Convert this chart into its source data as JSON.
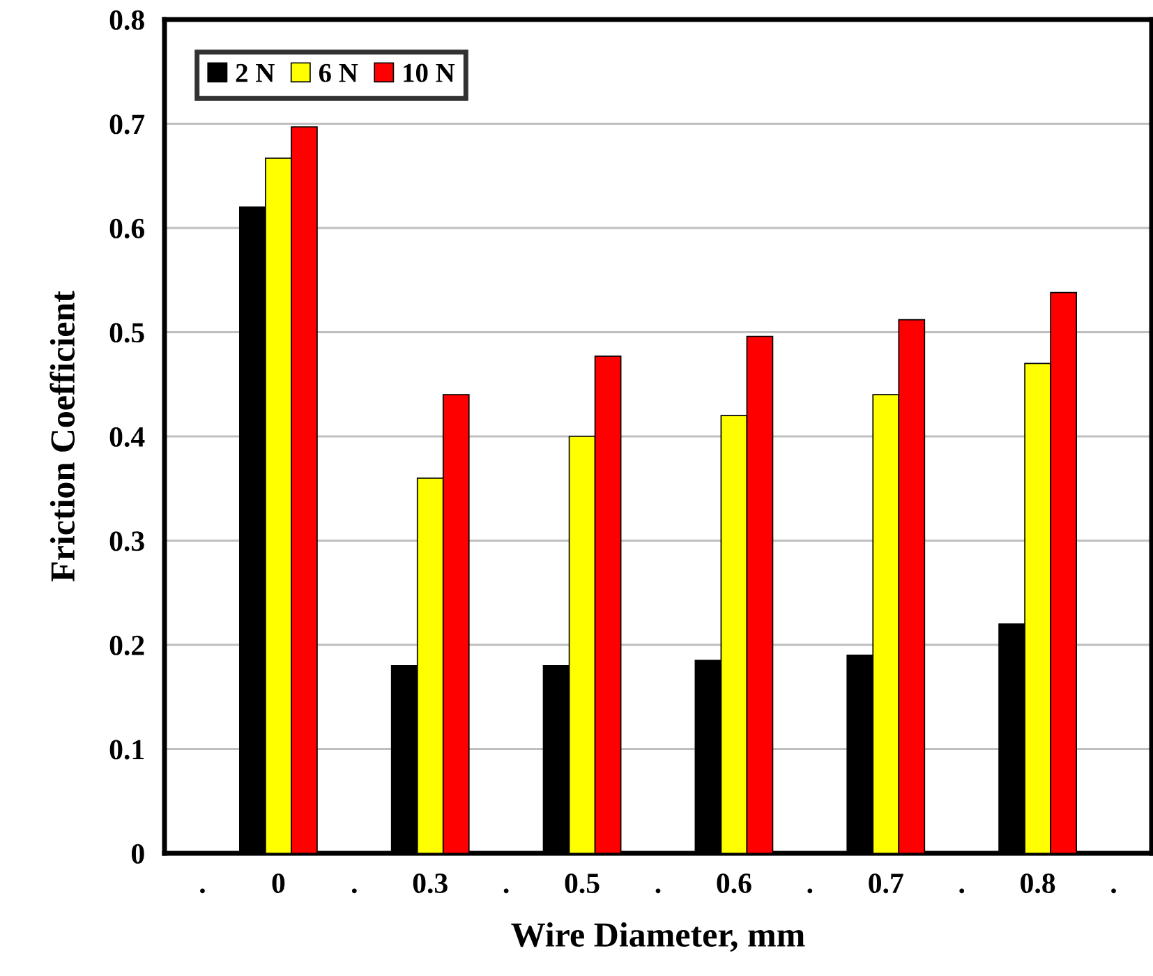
{
  "chart_data": {
    "type": "bar",
    "xlabel": "Wire Diameter, mm",
    "ylabel": "Friction Coefficient",
    "categories": [
      ".",
      "0",
      ".",
      "0.3",
      ".",
      "0.5",
      ".",
      "0.6",
      ".",
      "0.7",
      ".",
      "0.8",
      "."
    ],
    "series": [
      {
        "name": "2 N",
        "color": "#000000",
        "values": [
          null,
          0.62,
          null,
          0.18,
          null,
          0.18,
          null,
          0.185,
          null,
          0.19,
          null,
          0.22,
          null
        ]
      },
      {
        "name": "6 N",
        "color": "#ffff00",
        "values": [
          null,
          0.667,
          null,
          0.36,
          null,
          0.4,
          null,
          0.42,
          null,
          0.44,
          null,
          0.47,
          null
        ]
      },
      {
        "name": "10 N",
        "color": "#ff0000",
        "values": [
          null,
          0.697,
          null,
          0.44,
          null,
          0.477,
          null,
          0.496,
          null,
          0.512,
          null,
          0.538,
          null
        ]
      }
    ],
    "ylim": [
      0,
      0.8
    ],
    "yticks": [
      0,
      0.1,
      0.2,
      0.3,
      0.4,
      0.5,
      0.6,
      0.7,
      0.8
    ],
    "grid": "y",
    "legend": "top left"
  }
}
